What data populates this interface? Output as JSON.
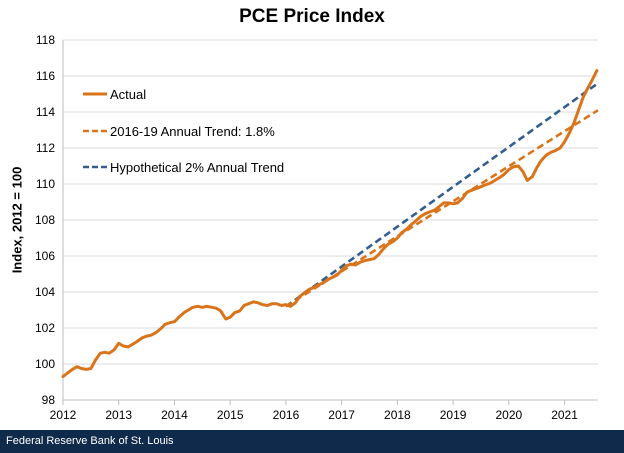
{
  "footer": {
    "source": "Federal Reserve Bank of St. Louis"
  },
  "colors": {
    "actual": "#d9741a",
    "trend_1_8": "#d9741a",
    "trend_2": "#335e8e",
    "grid": "#d9d9d9",
    "footer_bg": "#0f2a4a"
  },
  "chart_data": {
    "type": "line",
    "title": "PCE Price Index",
    "xlabel": "",
    "ylabel": "Index, 2012 = 100",
    "xlim": [
      2012,
      2021.6
    ],
    "ylim": [
      98,
      118
    ],
    "xticks": [
      2012,
      2013,
      2014,
      2015,
      2016,
      2017,
      2018,
      2019,
      2020,
      2021
    ],
    "yticks": [
      98,
      100,
      102,
      104,
      106,
      108,
      110,
      112,
      114,
      116,
      118
    ],
    "grid": "horizontal",
    "legend_position": "top-left",
    "series": [
      {
        "name": "Actual",
        "style": "solid",
        "color": "#d9741a",
        "x": [
          2012.0,
          2012.08,
          2012.17,
          2012.25,
          2012.33,
          2012.42,
          2012.5,
          2012.58,
          2012.67,
          2012.75,
          2012.83,
          2012.92,
          2013.0,
          2013.08,
          2013.17,
          2013.25,
          2013.33,
          2013.42,
          2013.5,
          2013.58,
          2013.67,
          2013.75,
          2013.83,
          2013.92,
          2014.0,
          2014.08,
          2014.17,
          2014.25,
          2014.33,
          2014.42,
          2014.5,
          2014.58,
          2014.67,
          2014.75,
          2014.83,
          2014.92,
          2015.0,
          2015.08,
          2015.17,
          2015.25,
          2015.33,
          2015.42,
          2015.5,
          2015.58,
          2015.67,
          2015.75,
          2015.83,
          2015.92,
          2016.0,
          2016.08,
          2016.17,
          2016.25,
          2016.33,
          2016.42,
          2016.5,
          2016.58,
          2016.67,
          2016.75,
          2016.83,
          2016.92,
          2017.0,
          2017.08,
          2017.17,
          2017.25,
          2017.33,
          2017.42,
          2017.5,
          2017.58,
          2017.67,
          2017.75,
          2017.83,
          2017.92,
          2018.0,
          2018.08,
          2018.17,
          2018.25,
          2018.33,
          2018.42,
          2018.5,
          2018.58,
          2018.67,
          2018.75,
          2018.83,
          2018.92,
          2019.0,
          2019.08,
          2019.17,
          2019.25,
          2019.33,
          2019.42,
          2019.5,
          2019.58,
          2019.67,
          2019.75,
          2019.83,
          2019.92,
          2020.0,
          2020.08,
          2020.17,
          2020.25,
          2020.33,
          2020.42,
          2020.5,
          2020.58,
          2020.67,
          2020.75,
          2020.83,
          2020.92,
          2021.0,
          2021.08,
          2021.17,
          2021.25,
          2021.33,
          2021.42,
          2021.5,
          2021.58
        ],
        "values": [
          99.3,
          99.5,
          99.7,
          99.85,
          99.75,
          99.7,
          99.75,
          100.2,
          100.6,
          100.65,
          100.6,
          100.8,
          101.15,
          101.0,
          100.95,
          101.1,
          101.25,
          101.45,
          101.55,
          101.6,
          101.75,
          101.95,
          102.2,
          102.3,
          102.35,
          102.6,
          102.85,
          103.0,
          103.15,
          103.2,
          103.15,
          103.2,
          103.15,
          103.1,
          102.95,
          102.5,
          102.6,
          102.85,
          102.95,
          103.25,
          103.35,
          103.45,
          103.4,
          103.3,
          103.25,
          103.35,
          103.35,
          103.25,
          103.3,
          103.2,
          103.4,
          103.75,
          103.95,
          104.15,
          104.25,
          104.4,
          104.5,
          104.7,
          104.8,
          104.95,
          105.2,
          105.45,
          105.55,
          105.5,
          105.65,
          105.75,
          105.8,
          105.85,
          106.1,
          106.4,
          106.65,
          106.8,
          107.0,
          107.3,
          107.5,
          107.75,
          107.95,
          108.2,
          108.35,
          108.45,
          108.55,
          108.75,
          108.95,
          108.95,
          108.9,
          108.95,
          109.2,
          109.55,
          109.65,
          109.75,
          109.85,
          109.95,
          110.05,
          110.2,
          110.35,
          110.55,
          110.8,
          110.95,
          111.0,
          110.7,
          110.2,
          110.4,
          110.9,
          111.3,
          111.6,
          111.75,
          111.85,
          112.0,
          112.35,
          112.8,
          113.4,
          114.1,
          114.8,
          115.35,
          115.8,
          116.3
        ]
      },
      {
        "name": "2016-19 Annual Trend: 1.8%",
        "style": "dashed",
        "color": "#d9741a",
        "x": [
          2016.0,
          2021.6
        ],
        "values": [
          103.2,
          114.1
        ]
      },
      {
        "name": "Hypothetical 2% Annual Trend",
        "style": "dashed",
        "color": "#335e8e",
        "x": [
          2016.0,
          2021.6
        ],
        "values": [
          103.2,
          115.6
        ]
      }
    ]
  }
}
